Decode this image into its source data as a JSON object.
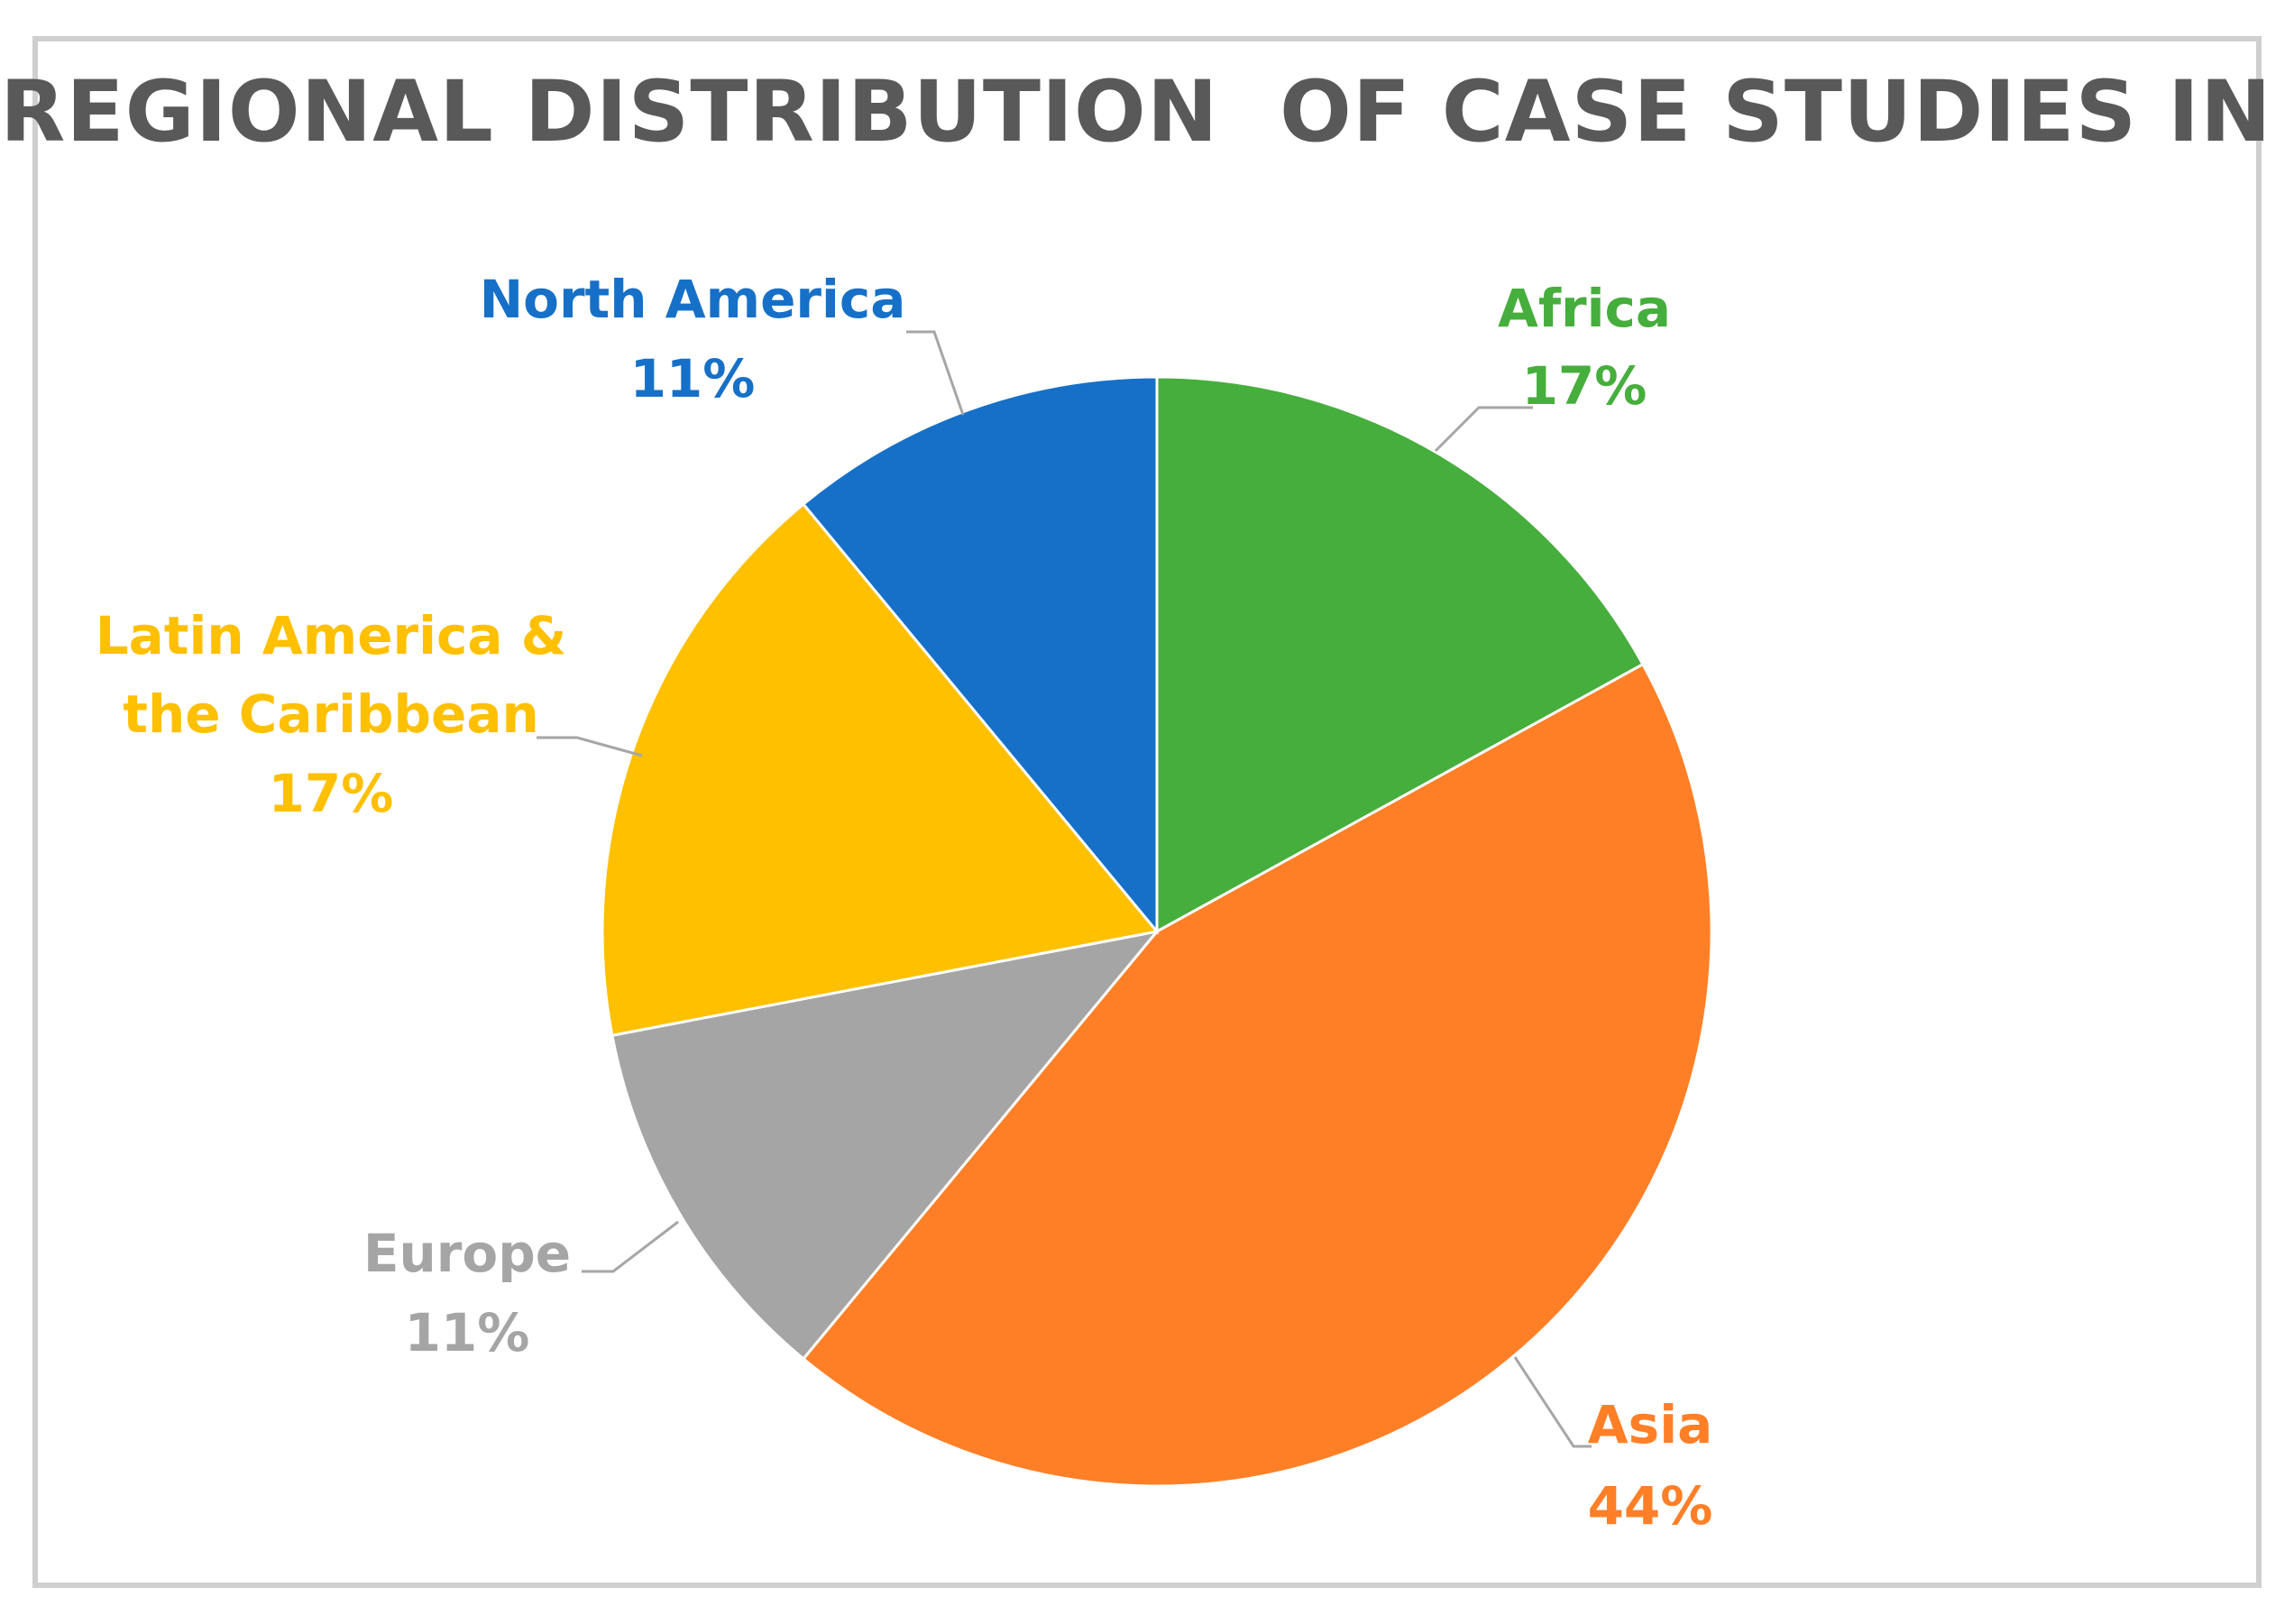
{
  "chart_data": {
    "type": "pie",
    "title": "REGIONAL DISTRIBUTION  OF CASE STUDIES IN %",
    "slices": [
      {
        "label": "Africa",
        "value": 17,
        "value_label": "17%",
        "color": "#46AE3C"
      },
      {
        "label": "Asia",
        "value": 44,
        "value_label": "44%",
        "color": "#FF7F27"
      },
      {
        "label": "Europe",
        "value": 11,
        "value_label": "11%",
        "color": "#A5A5A5"
      },
      {
        "label": "Latin America & the Caribbean",
        "label_lines": [
          "Latin America &",
          "the Caribbean"
        ],
        "value": 17,
        "value_label": "17%",
        "color": "#FFC000"
      },
      {
        "label": "North America",
        "value": 11,
        "value_label": "11%",
        "color": "#1670C8"
      }
    ],
    "leader_color": "#A6A6A6",
    "legend": "none"
  }
}
